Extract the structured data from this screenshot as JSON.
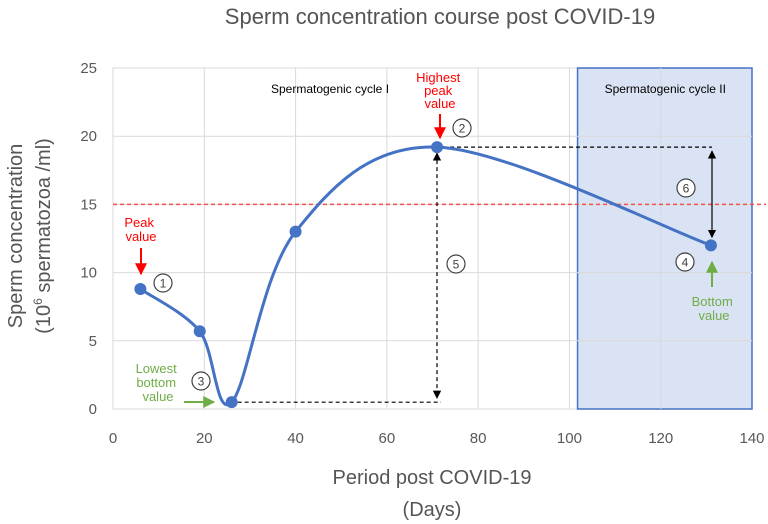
{
  "chart_data": {
    "type": "line",
    "title": "Sperm concentration course post COVID-19",
    "xlabel_line1": "Period post COVID-19",
    "xlabel_line2": "(Days)",
    "ylabel_line1": "Sperm concentration",
    "ylabel_line2_prefix": "(10",
    "ylabel_line2_sup": "6",
    "ylabel_line2_suffix": " spermatozoa /ml)",
    "xlim": [
      0,
      140
    ],
    "ylim": [
      0,
      25
    ],
    "x_ticks": [
      0,
      20,
      40,
      60,
      80,
      100,
      120,
      140
    ],
    "y_ticks": [
      0,
      5,
      10,
      15,
      20,
      25
    ],
    "grid": true,
    "series": [
      {
        "name": "Sperm concentration",
        "x": [
          6,
          19,
          26,
          40,
          71,
          131
        ],
        "y": [
          8.8,
          5.7,
          0.5,
          13,
          19.2,
          12
        ]
      }
    ],
    "threshold": 15,
    "regions": [
      {
        "label": "Spermatogenic cycle I",
        "x_start": 0,
        "x_end": 102
      },
      {
        "label": "Spermatogenic cycle II",
        "x_start": 102,
        "x_end": 140
      }
    ],
    "annotations": {
      "peak_value": [
        "Peak",
        "value"
      ],
      "highest_peak_value": [
        "Highest",
        "peak",
        "value"
      ],
      "lowest_bottom_value": [
        "Lowest",
        "bottom",
        "value"
      ],
      "bottom_value": [
        "Bottom",
        "value"
      ],
      "markers": [
        "1",
        "2",
        "3",
        "4",
        "5",
        "6"
      ]
    },
    "colors": {
      "line": "#4472c4",
      "region_fill": "#dae3f3",
      "region_border": "#4472c4",
      "threshold": "#ef5350",
      "red_text": "#ff0000",
      "green_text": "#70ad47"
    }
  }
}
